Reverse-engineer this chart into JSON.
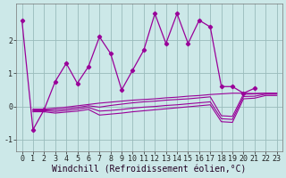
{
  "x": [
    0,
    1,
    2,
    3,
    4,
    5,
    6,
    7,
    8,
    9,
    10,
    11,
    12,
    13,
    14,
    15,
    16,
    17,
    18,
    19,
    20,
    21,
    22,
    23
  ],
  "line_main": [
    2.6,
    -0.7,
    -0.1,
    0.75,
    1.3,
    0.7,
    1.2,
    2.1,
    1.6,
    0.5,
    1.1,
    1.7,
    2.8,
    1.9,
    2.8,
    1.9,
    2.6,
    2.4,
    0.6,
    0.6,
    0.4,
    0.55,
    null,
    null
  ],
  "trend1": [
    null,
    -0.08,
    -0.08,
    -0.05,
    -0.02,
    0.02,
    0.06,
    0.1,
    0.13,
    0.16,
    0.19,
    0.21,
    0.23,
    0.26,
    0.28,
    0.31,
    0.33,
    0.36,
    0.38,
    0.4,
    0.4,
    0.39,
    0.4,
    0.4
  ],
  "trend2": [
    null,
    -0.1,
    -0.1,
    -0.1,
    -0.07,
    -0.03,
    0.02,
    -0.02,
    0.03,
    0.07,
    0.11,
    0.14,
    0.16,
    0.19,
    0.21,
    0.23,
    0.26,
    0.29,
    -0.28,
    -0.3,
    0.37,
    0.38,
    0.4,
    0.4
  ],
  "trend3": [
    null,
    -0.13,
    -0.13,
    -0.15,
    -0.12,
    -0.08,
    -0.03,
    -0.14,
    -0.12,
    -0.09,
    -0.05,
    -0.02,
    0.0,
    0.03,
    0.05,
    0.08,
    0.11,
    0.14,
    -0.37,
    -0.39,
    0.3,
    0.31,
    0.37,
    0.37
  ],
  "trend4": [
    null,
    -0.16,
    -0.16,
    -0.2,
    -0.17,
    -0.14,
    -0.09,
    -0.26,
    -0.23,
    -0.2,
    -0.16,
    -0.13,
    -0.1,
    -0.07,
    -0.04,
    -0.01,
    0.02,
    0.05,
    -0.46,
    -0.48,
    0.23,
    0.25,
    0.33,
    0.33
  ],
  "color": "#990099",
  "bg_color": "#cce8e8",
  "grid_color": "#99bbbb",
  "xlim": [
    -0.5,
    23.5
  ],
  "ylim": [
    -1.35,
    3.1
  ],
  "yticks": [
    -1,
    0,
    1,
    2
  ],
  "xlabel": "Windchill (Refroidissement éolien,°C)",
  "xlabel_fontsize": 7.0,
  "tick_fontsize": 6.0
}
